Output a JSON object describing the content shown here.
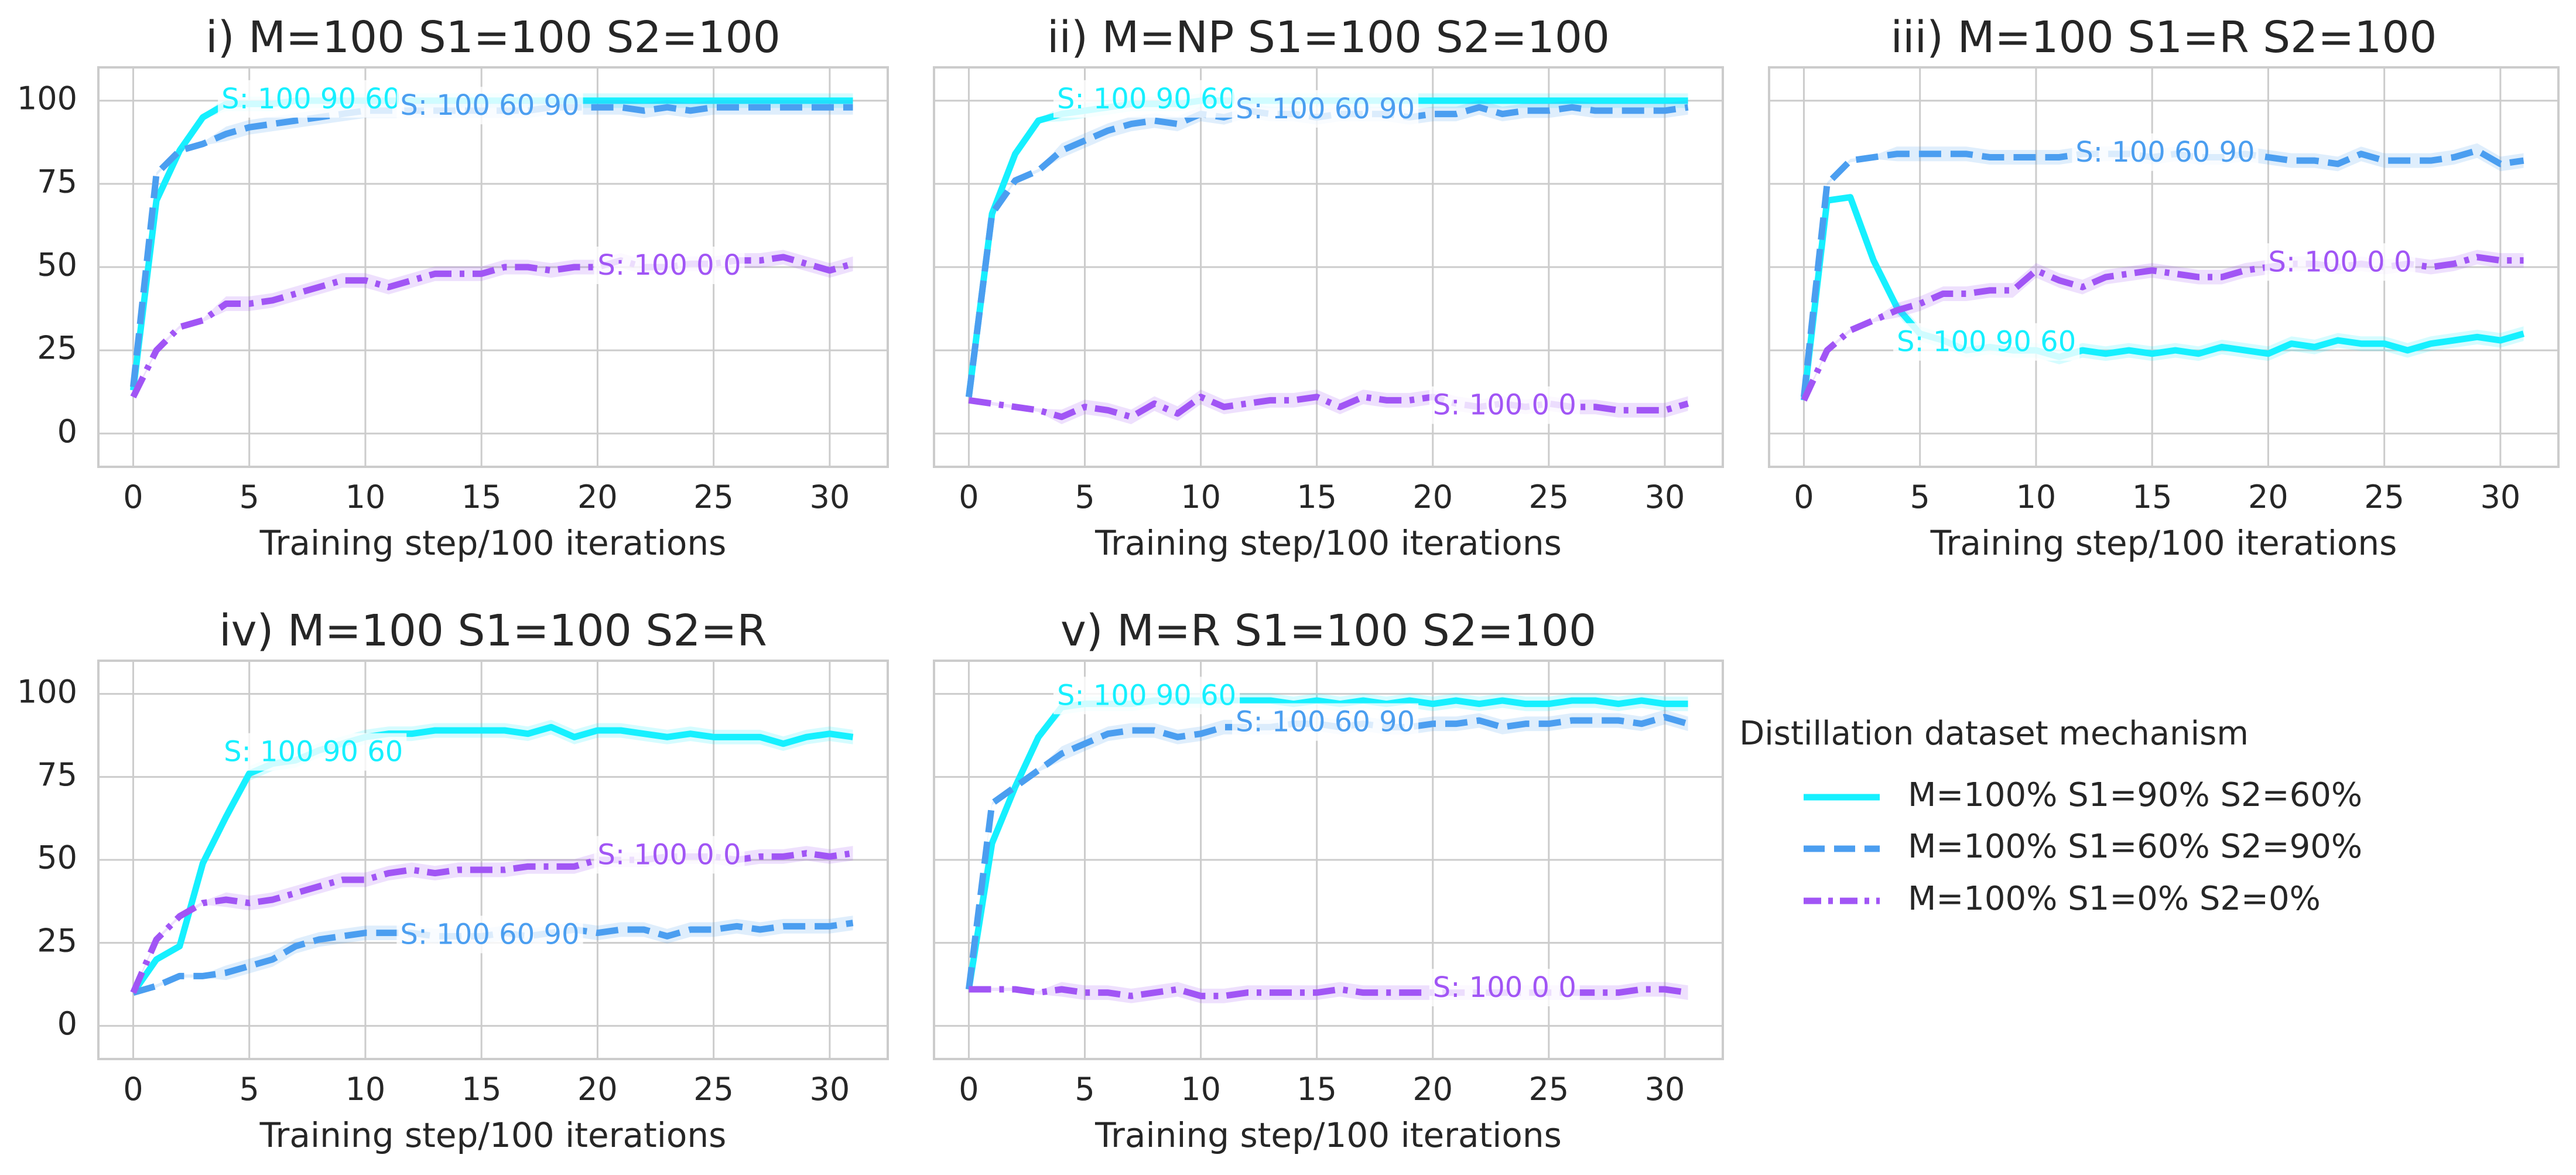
{
  "chart_data": {
    "type": "line",
    "x": [
      0,
      1,
      2,
      3,
      4,
      5,
      6,
      7,
      8,
      9,
      10,
      11,
      12,
      13,
      14,
      15,
      16,
      17,
      18,
      19,
      20,
      21,
      22,
      23,
      24,
      25,
      26,
      27,
      28,
      29,
      30,
      31
    ],
    "xlabel": "Training step/100 iterations",
    "ylim": [
      -10,
      110
    ],
    "xlim": [
      -1.5,
      32.5
    ],
    "yticks": [
      0,
      25,
      50,
      75,
      100
    ],
    "xticks": [
      0,
      5,
      10,
      15,
      20,
      25,
      30
    ],
    "grid": true,
    "series_styles": [
      {
        "color": "#16f0ff",
        "dash": "solid"
      },
      {
        "color": "#4b9ef0",
        "dash": "dashed"
      },
      {
        "color": "#a155f5",
        "dash": "dashdot"
      }
    ],
    "panels": [
      {
        "title": "i) M=100 S1=100 S2=100",
        "series": [
          {
            "label": "S: 100 90 60",
            "label_x": 3.8,
            "label_y": 100,
            "values": [
              13,
              70,
              85,
              95,
              99,
              99,
              99,
              100,
              100,
              100,
              100,
              100,
              100,
              100,
              100,
              100,
              100,
              100,
              100,
              100,
              100,
              100,
              100,
              100,
              100,
              100,
              100,
              100,
              100,
              100,
              100,
              100
            ]
          },
          {
            "label": "S: 100 60 90",
            "label_x": 11.5,
            "label_y": 98,
            "values": [
              14,
              78,
              85,
              87,
              90,
              92,
              93,
              94,
              95,
              96,
              97,
              97,
              97,
              97,
              97,
              97,
              97,
              97,
              98,
              98,
              98,
              98,
              97,
              98,
              97,
              98,
              98,
              98,
              98,
              98,
              98,
              98
            ]
          },
          {
            "label": "S: 100 0 0",
            "label_x": 20,
            "label_y": 50,
            "values": [
              11,
              25,
              32,
              34,
              39,
              39,
              40,
              42,
              44,
              46,
              46,
              44,
              46,
              48,
              48,
              48,
              50,
              50,
              49,
              50,
              50,
              52,
              50,
              50,
              51,
              51,
              52,
              52,
              53,
              51,
              49,
              51
            ]
          }
        ]
      },
      {
        "title": "ii) M=NP S1=100 S2=100",
        "series": [
          {
            "label": "S: 100 90 60",
            "label_x": 3.8,
            "label_y": 100,
            "values": [
              11,
              66,
              84,
              94,
              96,
              97,
              98,
              99,
              99,
              99,
              100,
              100,
              100,
              100,
              100,
              100,
              100,
              100,
              100,
              100,
              100,
              100,
              100,
              100,
              100,
              100,
              100,
              100,
              100,
              100,
              100,
              100
            ]
          },
          {
            "label": "S: 100 60 90",
            "label_x": 11.5,
            "label_y": 97,
            "values": [
              11,
              66,
              76,
              79,
              85,
              88,
              91,
              93,
              94,
              93,
              96,
              95,
              97,
              96,
              96,
              95,
              96,
              96,
              96,
              95,
              96,
              96,
              98,
              96,
              97,
              97,
              98,
              97,
              97,
              97,
              97,
              98
            ]
          },
          {
            "label": "S: 100 0 0",
            "label_x": 20,
            "label_y": 8,
            "values": [
              10,
              9,
              8,
              7,
              5,
              8,
              7,
              5,
              9,
              6,
              11,
              8,
              9,
              10,
              10,
              11,
              8,
              11,
              10,
              10,
              11,
              9,
              8,
              9,
              8,
              9,
              8,
              8,
              7,
              7,
              7,
              9
            ]
          }
        ]
      },
      {
        "title": "iii) M=100 S1=R S2=100",
        "series": [
          {
            "label": "S: 100 90 60",
            "label_x": 4,
            "label_y": 27,
            "values": [
              10,
              70,
              71,
              52,
              38,
              30,
              28,
              25,
              26,
              25,
              25,
              23,
              25,
              24,
              25,
              24,
              25,
              24,
              26,
              25,
              24,
              27,
              26,
              28,
              27,
              27,
              25,
              27,
              28,
              29,
              28,
              30
            ]
          },
          {
            "label": "S: 100 60 90",
            "label_x": 11.7,
            "label_y": 84,
            "values": [
              11,
              75,
              82,
              83,
              84,
              84,
              84,
              84,
              83,
              83,
              83,
              83,
              84,
              84,
              84,
              83,
              84,
              83,
              83,
              84,
              83,
              82,
              82,
              81,
              84,
              82,
              82,
              82,
              83,
              85,
              81,
              82
            ]
          },
          {
            "label": "S: 100 0 0",
            "label_x": 20,
            "label_y": 51,
            "values": [
              10,
              25,
              31,
              34,
              37,
              39,
              42,
              42,
              43,
              43,
              49,
              46,
              44,
              47,
              48,
              49,
              48,
              47,
              47,
              49,
              50,
              51,
              51,
              50,
              51,
              50,
              51,
              50,
              51,
              53,
              52,
              52
            ]
          }
        ]
      },
      {
        "title": "iv) M=100 S1=100 S2=R",
        "series": [
          {
            "label": "S: 100 90 60",
            "label_x": 3.9,
            "label_y": 82,
            "values": [
              10,
              20,
              24,
              49,
              63,
              76,
              79,
              80,
              83,
              85,
              87,
              88,
              88,
              89,
              89,
              89,
              89,
              88,
              90,
              87,
              89,
              89,
              88,
              87,
              88,
              87,
              87,
              87,
              85,
              87,
              88,
              87
            ]
          },
          {
            "label": "S: 100 60 90",
            "label_x": 11.5,
            "label_y": 27,
            "values": [
              10,
              12,
              15,
              15,
              16,
              18,
              20,
              24,
              26,
              27,
              28,
              28,
              28,
              27,
              27,
              27,
              28,
              27,
              28,
              29,
              28,
              29,
              29,
              27,
              29,
              29,
              30,
              29,
              30,
              30,
              30,
              31
            ]
          },
          {
            "label": "S: 100 0 0",
            "label_x": 20,
            "label_y": 51,
            "values": [
              10,
              26,
              33,
              37,
              38,
              37,
              38,
              40,
              42,
              44,
              44,
              46,
              47,
              46,
              47,
              47,
              47,
              48,
              48,
              48,
              50,
              50,
              50,
              51,
              51,
              51,
              50,
              51,
              51,
              52,
              51,
              52
            ]
          }
        ]
      },
      {
        "title": "v) M=R S1=100 S2=100",
        "series": [
          {
            "label": "S: 100 90 60",
            "label_x": 3.8,
            "label_y": 99,
            "values": [
              11,
              55,
              72,
              87,
              96,
              97,
              97,
              97,
              98,
              98,
              98,
              98,
              98,
              98,
              97,
              98,
              97,
              98,
              97,
              98,
              97,
              98,
              97,
              98,
              97,
              97,
              98,
              98,
              97,
              98,
              97,
              97
            ]
          },
          {
            "label": "S: 100 60 90",
            "label_x": 11.5,
            "label_y": 91,
            "values": [
              11,
              67,
              72,
              77,
              82,
              85,
              88,
              89,
              89,
              87,
              88,
              90,
              90,
              90,
              91,
              91,
              90,
              91,
              90,
              90,
              91,
              91,
              92,
              90,
              91,
              91,
              92,
              92,
              92,
              91,
              93,
              91
            ]
          },
          {
            "label": "S: 100 0 0",
            "label_x": 20,
            "label_y": 11,
            "values": [
              11,
              11,
              11,
              10,
              11,
              10,
              10,
              9,
              10,
              11,
              9,
              9,
              10,
              10,
              10,
              10,
              11,
              10,
              10,
              10,
              10,
              10,
              10,
              10,
              10,
              10,
              10,
              10,
              10,
              11,
              11,
              10
            ]
          }
        ]
      }
    ],
    "legend": {
      "title": "Distillation dataset mechanism",
      "entries": [
        "M=100% S1=90% S2=60%",
        "M=100% S1=60% S2=90%",
        "M=100% S1=0% S2=0%"
      ],
      "placement": "bottom-right"
    }
  }
}
